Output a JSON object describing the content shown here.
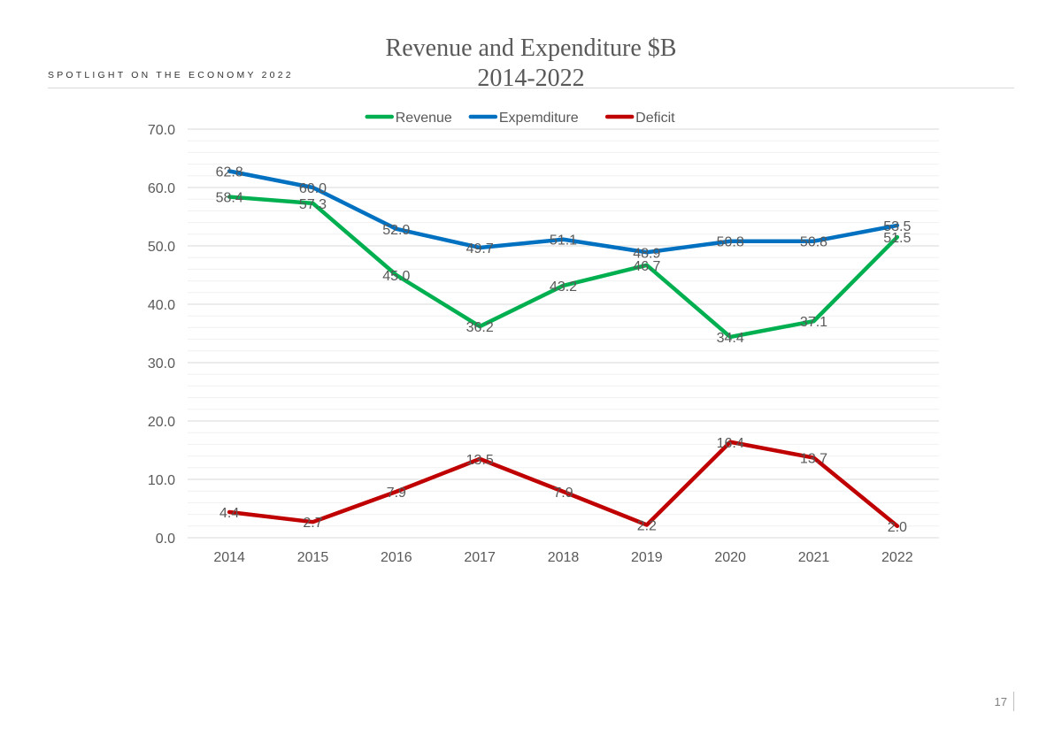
{
  "page": {
    "kicker": "SPOTLIGHT ON THE ECONOMY 2022",
    "page_number": "17"
  },
  "chart_data": {
    "type": "line",
    "title_line1": "Revenue and Expenditure $B",
    "title_line2": "2014-2022",
    "categories": [
      "2014",
      "2015",
      "2016",
      "2017",
      "2018",
      "2019",
      "2020",
      "2021",
      "2022"
    ],
    "series": [
      {
        "name": "Revenue",
        "color": "#00b050",
        "values": [
          58.4,
          57.3,
          45.0,
          36.2,
          43.2,
          46.7,
          34.4,
          37.1,
          51.5
        ]
      },
      {
        "name": "Expemditure",
        "color": "#0070c0",
        "values": [
          62.8,
          60.0,
          52.9,
          49.7,
          51.1,
          48.9,
          50.8,
          50.8,
          53.5
        ]
      },
      {
        "name": "Deficit",
        "color": "#c00000",
        "values": [
          4.4,
          2.7,
          7.9,
          13.5,
          7.9,
          2.2,
          16.4,
          13.7,
          2.0
        ]
      }
    ],
    "ylim": [
      0,
      70
    ],
    "yticks": [
      "0.0",
      "10.0",
      "20.0",
      "30.0",
      "40.0",
      "50.0",
      "60.0",
      "70.0"
    ],
    "grid": true,
    "legend_position": "top-center",
    "data_labels": true
  }
}
